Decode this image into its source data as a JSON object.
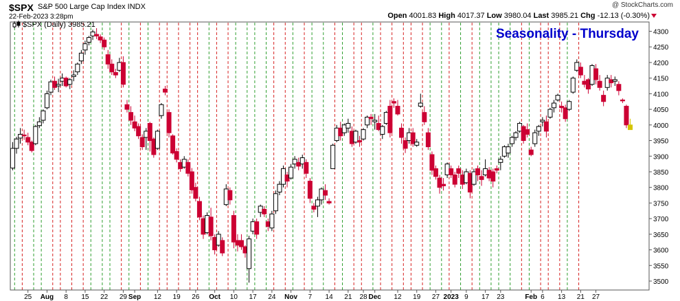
{
  "header": {
    "symbol": "$SPX",
    "description": "S&P 500 Large Cap Index  INDX",
    "datetime": "22-Feb-2023 3:28pm",
    "copyright": "@ StockCharts.com",
    "open_label": "Open",
    "open": "4001.83",
    "high_label": "High",
    "high": "4017.37",
    "low_label": "Low",
    "low": "3980.04",
    "last_label": "Last",
    "last": "3985.21",
    "chg_label": "Chg",
    "chg": "-12.13 (-0.30%)"
  },
  "colors": {
    "up": "#000000",
    "down": "#cc0033",
    "up_grid": "#2e9e2e",
    "down_grid": "#d62020",
    "title": "#0000cc",
    "last_bar": "#d4c400"
  },
  "chart_data": {
    "type": "candlestick",
    "title": "Seasonality - Thursday",
    "legend": "$SPX (Daily) 3985.21",
    "legend_icon": "candlestick-icon",
    "y_ticks": [
      3500,
      3550,
      3600,
      3650,
      3700,
      3750,
      3800,
      3850,
      3900,
      3950,
      4000,
      4050,
      4100,
      4150,
      4200,
      4250,
      4300
    ],
    "ylim": [
      3480,
      4330
    ],
    "x_tick_labels": [
      {
        "i": 4,
        "label": "25",
        "bold": false
      },
      {
        "i": 9,
        "label": "Aug",
        "bold": true
      },
      {
        "i": 14,
        "label": "8",
        "bold": false
      },
      {
        "i": 19,
        "label": "15",
        "bold": false
      },
      {
        "i": 24,
        "label": "22",
        "bold": false
      },
      {
        "i": 29,
        "label": "29",
        "bold": false
      },
      {
        "i": 32,
        "label": "Sep",
        "bold": true
      },
      {
        "i": 38,
        "label": "12",
        "bold": false
      },
      {
        "i": 43,
        "label": "19",
        "bold": false
      },
      {
        "i": 48,
        "label": "26",
        "bold": false
      },
      {
        "i": 53,
        "label": "Oct",
        "bold": true
      },
      {
        "i": 58,
        "label": "10",
        "bold": false
      },
      {
        "i": 63,
        "label": "17",
        "bold": false
      },
      {
        "i": 68,
        "label": "24",
        "bold": false
      },
      {
        "i": 73,
        "label": "Nov",
        "bold": true
      },
      {
        "i": 78,
        "label": "7",
        "bold": false
      },
      {
        "i": 83,
        "label": "14",
        "bold": false
      },
      {
        "i": 88,
        "label": "21",
        "bold": false
      },
      {
        "i": 92,
        "label": "28",
        "bold": false
      },
      {
        "i": 95,
        "label": "Dec",
        "bold": true
      },
      {
        "i": 101,
        "label": "12",
        "bold": false
      },
      {
        "i": 106,
        "label": "19",
        "bold": false
      },
      {
        "i": 111,
        "label": "27",
        "bold": false
      },
      {
        "i": 115,
        "label": "2023",
        "bold": true
      },
      {
        "i": 119,
        "label": "9",
        "bold": false
      },
      {
        "i": 124,
        "label": "17",
        "bold": false
      },
      {
        "i": 128,
        "label": "23",
        "bold": false
      },
      {
        "i": 136,
        "label": "Feb",
        "bold": true
      },
      {
        "i": 139,
        "label": "6",
        "bold": false
      },
      {
        "i": 144,
        "label": "13",
        "bold": false
      },
      {
        "i": 149,
        "label": "21",
        "bold": false
      },
      {
        "i": 153,
        "label": "27",
        "bold": false
      }
    ],
    "week_lines": [
      {
        "i": 1,
        "t": "up"
      },
      {
        "i": 3,
        "t": "down"
      },
      {
        "i": 6,
        "t": "up"
      },
      {
        "i": 8,
        "t": "up"
      },
      {
        "i": 11,
        "t": "down"
      },
      {
        "i": 13,
        "t": "down"
      },
      {
        "i": 16,
        "t": "down"
      },
      {
        "i": 19,
        "t": "down"
      },
      {
        "i": 21,
        "t": "up"
      },
      {
        "i": 24,
        "t": "up"
      },
      {
        "i": 26,
        "t": "up"
      },
      {
        "i": 29,
        "t": "down"
      },
      {
        "i": 31,
        "t": "up"
      },
      {
        "i": 34,
        "t": "down"
      },
      {
        "i": 36,
        "t": "up"
      },
      {
        "i": 39,
        "t": "down"
      },
      {
        "i": 41,
        "t": "down"
      },
      {
        "i": 44,
        "t": "down"
      },
      {
        "i": 47,
        "t": "down"
      },
      {
        "i": 49,
        "t": "down"
      },
      {
        "i": 52,
        "t": "up"
      },
      {
        "i": 54,
        "t": "down"
      },
      {
        "i": 57,
        "t": "down"
      },
      {
        "i": 59,
        "t": "up"
      },
      {
        "i": 62,
        "t": "up"
      },
      {
        "i": 64,
        "t": "up"
      },
      {
        "i": 67,
        "t": "up"
      },
      {
        "i": 69,
        "t": "down"
      },
      {
        "i": 72,
        "t": "down"
      },
      {
        "i": 74,
        "t": "up"
      },
      {
        "i": 77,
        "t": "down"
      },
      {
        "i": 79,
        "t": "up"
      },
      {
        "i": 82,
        "t": "up"
      },
      {
        "i": 85,
        "t": "down"
      },
      {
        "i": 87,
        "t": "up"
      },
      {
        "i": 90,
        "t": "down"
      },
      {
        "i": 92,
        "t": "down"
      },
      {
        "i": 95,
        "t": "up"
      },
      {
        "i": 97,
        "t": "down"
      },
      {
        "i": 100,
        "t": "down"
      },
      {
        "i": 103,
        "t": "down"
      },
      {
        "i": 105,
        "t": "down"
      },
      {
        "i": 108,
        "t": "down"
      },
      {
        "i": 110,
        "t": "up"
      },
      {
        "i": 113,
        "t": "up"
      },
      {
        "i": 115,
        "t": "down"
      },
      {
        "i": 118,
        "t": "up"
      },
      {
        "i": 121,
        "t": "down"
      },
      {
        "i": 123,
        "t": "up"
      },
      {
        "i": 126,
        "t": "up"
      },
      {
        "i": 128,
        "t": "up"
      },
      {
        "i": 131,
        "t": "up"
      },
      {
        "i": 134,
        "t": "down"
      },
      {
        "i": 136,
        "t": "up"
      },
      {
        "i": 139,
        "t": "down"
      },
      {
        "i": 141,
        "t": "down"
      },
      {
        "i": 144,
        "t": "down"
      },
      {
        "i": 146,
        "t": "up"
      },
      {
        "i": 149,
        "t": "down"
      }
    ],
    "ohlc": [
      [
        3862,
        3945,
        3855,
        3925
      ],
      [
        3925,
        3962,
        3908,
        3955
      ],
      [
        3958,
        3990,
        3940,
        3970
      ],
      [
        3968,
        3985,
        3952,
        3965
      ],
      [
        3960,
        3975,
        3935,
        3945
      ],
      [
        3945,
        3950,
        3912,
        3918
      ],
      [
        3940,
        4000,
        3935,
        3995
      ],
      [
        3998,
        4025,
        3990,
        4010
      ],
      [
        4015,
        4050,
        4005,
        4045
      ],
      [
        4055,
        4110,
        4050,
        4100
      ],
      [
        4105,
        4145,
        4095,
        4138
      ],
      [
        4140,
        4155,
        4112,
        4120
      ],
      [
        4125,
        4148,
        4105,
        4130
      ],
      [
        4140,
        4165,
        4125,
        4150
      ],
      [
        4150,
        4155,
        4120,
        4125
      ],
      [
        4130,
        4150,
        4115,
        4145
      ],
      [
        4155,
        4175,
        4140,
        4160
      ],
      [
        4170,
        4200,
        4160,
        4195
      ],
      [
        4205,
        4240,
        4195,
        4230
      ],
      [
        4240,
        4270,
        4225,
        4260
      ],
      [
        4265,
        4285,
        4255,
        4280
      ],
      [
        4285,
        4305,
        4272,
        4298
      ],
      [
        4290,
        4310,
        4275,
        4285
      ],
      [
        4282,
        4290,
        4262,
        4272
      ],
      [
        4272,
        4280,
        4240,
        4250
      ],
      [
        4225,
        4240,
        4180,
        4195
      ],
      [
        4195,
        4210,
        4160,
        4170
      ],
      [
        4168,
        4180,
        4150,
        4160
      ],
      [
        4175,
        4215,
        4170,
        4200
      ],
      [
        4200,
        4220,
        4120,
        4130
      ],
      [
        4065,
        4080,
        4040,
        4050
      ],
      [
        4040,
        4060,
        4000,
        4015
      ],
      [
        4010,
        4030,
        3980,
        3990
      ],
      [
        3995,
        4005,
        3955,
        3965
      ],
      [
        3960,
        3970,
        3920,
        3930
      ],
      [
        3960,
        3990,
        3920,
        3980
      ],
      [
        4005,
        4010,
        3915,
        3950
      ],
      [
        3955,
        3960,
        3895,
        3905
      ],
      [
        3925,
        3985,
        3920,
        3980
      ],
      [
        4030,
        4070,
        4020,
        4065
      ],
      [
        4115,
        4125,
        4095,
        4105
      ],
      [
        4040,
        4050,
        3960,
        3975
      ],
      [
        3965,
        3970,
        3905,
        3910
      ],
      [
        3915,
        3925,
        3880,
        3890
      ],
      [
        3880,
        3890,
        3850,
        3860
      ],
      [
        3865,
        3900,
        3860,
        3890
      ],
      [
        3880,
        3890,
        3835,
        3845
      ],
      [
        3850,
        3862,
        3780,
        3792
      ],
      [
        3800,
        3815,
        3755,
        3765
      ],
      [
        3755,
        3770,
        3695,
        3705
      ],
      [
        3700,
        3710,
        3635,
        3650
      ],
      [
        3655,
        3720,
        3650,
        3710
      ],
      [
        3705,
        3735,
        3630,
        3645
      ],
      [
        3640,
        3650,
        3585,
        3600
      ],
      [
        3615,
        3660,
        3610,
        3650
      ],
      [
        3630,
        3640,
        3580,
        3590
      ],
      [
        3745,
        3810,
        3740,
        3795
      ],
      [
        3790,
        3800,
        3745,
        3760
      ],
      [
        3710,
        3725,
        3605,
        3625
      ],
      [
        3630,
        3650,
        3595,
        3615
      ],
      [
        3630,
        3650,
        3600,
        3610
      ],
      [
        3610,
        3615,
        3575,
        3590
      ],
      [
        3540,
        3645,
        3495,
        3635
      ],
      [
        3660,
        3700,
        3650,
        3690
      ],
      [
        3690,
        3700,
        3635,
        3650
      ],
      [
        3720,
        3745,
        3705,
        3740
      ],
      [
        3730,
        3740,
        3705,
        3715
      ],
      [
        3690,
        3700,
        3660,
        3675
      ],
      [
        3670,
        3725,
        3660,
        3715
      ],
      [
        3725,
        3790,
        3715,
        3780
      ],
      [
        3785,
        3820,
        3775,
        3810
      ],
      [
        3810,
        3870,
        3800,
        3860
      ],
      [
        3840,
        3850,
        3800,
        3820
      ],
      [
        3830,
        3875,
        3825,
        3865
      ],
      [
        3875,
        3900,
        3860,
        3890
      ],
      [
        3880,
        3895,
        3855,
        3868
      ],
      [
        3875,
        3905,
        3860,
        3895
      ],
      [
        3880,
        3890,
        3830,
        3845
      ],
      [
        3820,
        3830,
        3750,
        3765
      ],
      [
        3740,
        3750,
        3720,
        3730
      ],
      [
        3740,
        3770,
        3705,
        3760
      ],
      [
        3760,
        3800,
        3745,
        3795
      ],
      [
        3790,
        3810,
        3760,
        3775
      ],
      [
        3755,
        3765,
        3745,
        3750
      ],
      [
        3860,
        3940,
        3860,
        3935
      ],
      [
        3950,
        4000,
        3945,
        3990
      ],
      [
        3990,
        4010,
        3950,
        3965
      ],
      [
        3975,
        4005,
        3965,
        4000
      ],
      [
        3990,
        4020,
        3975,
        4005
      ],
      [
        3980,
        3995,
        3930,
        3940
      ],
      [
        3945,
        3985,
        3940,
        3980
      ],
      [
        3950,
        3965,
        3930,
        3945
      ],
      [
        3955,
        3990,
        3950,
        3985
      ],
      [
        4000,
        4030,
        3990,
        4025
      ],
      [
        4025,
        4035,
        4000,
        4020
      ],
      [
        4010,
        4035,
        3985,
        4015
      ],
      [
        4005,
        4030,
        3980,
        3985
      ],
      [
        3970,
        4000,
        3955,
        3995
      ],
      [
        4005,
        4045,
        4000,
        4040
      ],
      [
        4060,
        4080,
        3960,
        3975
      ],
      [
        4075,
        4085,
        4055,
        4070
      ],
      [
        4060,
        4080,
        4030,
        4035
      ],
      [
        3990,
        4005,
        3940,
        3960
      ],
      [
        3950,
        3960,
        3910,
        3925
      ],
      [
        3950,
        3990,
        3940,
        3975
      ],
      [
        3975,
        3990,
        3930,
        3940
      ],
      [
        3935,
        3955,
        3930,
        3945
      ],
      [
        4060,
        4100,
        4055,
        4070
      ],
      [
        4040,
        4060,
        4000,
        4010
      ],
      [
        3975,
        3990,
        3920,
        3930
      ],
      [
        3905,
        3915,
        3840,
        3855
      ],
      [
        3860,
        3870,
        3825,
        3835
      ],
      [
        3830,
        3840,
        3780,
        3800
      ],
      [
        3810,
        3830,
        3790,
        3805
      ],
      [
        3840,
        3880,
        3830,
        3875
      ],
      [
        3860,
        3870,
        3830,
        3840
      ],
      [
        3840,
        3850,
        3800,
        3810
      ],
      [
        3860,
        3870,
        3830,
        3845
      ],
      [
        3840,
        3855,
        3795,
        3810
      ],
      [
        3815,
        3860,
        3810,
        3850
      ],
      [
        3845,
        3855,
        3765,
        3785
      ],
      [
        3810,
        3860,
        3805,
        3850
      ],
      [
        3860,
        3870,
        3820,
        3840
      ],
      [
        3835,
        3855,
        3805,
        3825
      ],
      [
        3840,
        3890,
        3835,
        3860
      ],
      [
        3855,
        3865,
        3820,
        3830
      ],
      [
        3850,
        3860,
        3800,
        3820
      ],
      [
        3860,
        3870,
        3845,
        3855
      ],
      [
        3880,
        3900,
        3855,
        3890
      ],
      [
        3900,
        3935,
        3895,
        3930
      ],
      [
        3910,
        3940,
        3895,
        3930
      ],
      [
        3940,
        3965,
        3930,
        3960
      ],
      [
        3960,
        3980,
        3950,
        3975
      ],
      [
        3980,
        4010,
        3975,
        4005
      ],
      [
        3995,
        4000,
        3940,
        3950
      ],
      [
        3985,
        4005,
        3960,
        3970
      ],
      [
        3920,
        3930,
        3900,
        3905
      ],
      [
        3940,
        3985,
        3930,
        3975
      ],
      [
        3980,
        4000,
        3965,
        3995
      ],
      [
        4010,
        4025,
        3995,
        4015
      ],
      [
        4010,
        4030,
        3960,
        3980
      ],
      [
        4025,
        4055,
        4020,
        4050
      ],
      [
        4055,
        4080,
        4040,
        4070
      ],
      [
        4080,
        4100,
        4075,
        4095
      ],
      [
        4060,
        4075,
        4040,
        4055
      ],
      [
        4055,
        4065,
        4010,
        4020
      ],
      [
        4050,
        4080,
        4045,
        4075
      ],
      [
        4105,
        4155,
        4100,
        4150
      ],
      [
        4175,
        4210,
        4170,
        4200
      ],
      [
        4185,
        4200,
        4150,
        4160
      ],
      [
        4140,
        4160,
        4120,
        4130
      ],
      [
        4145,
        4150,
        4100,
        4115
      ],
      [
        4130,
        4195,
        4125,
        4190
      ],
      [
        4180,
        4195,
        4130,
        4145
      ],
      [
        4140,
        4160,
        4110,
        4120
      ],
      [
        4095,
        4110,
        4060,
        4075
      ],
      [
        4120,
        4160,
        4110,
        4150
      ],
      [
        4145,
        4160,
        4120,
        4135
      ],
      [
        4140,
        4155,
        4125,
        4145
      ],
      [
        4130,
        4140,
        4095,
        4110
      ],
      [
        4080,
        4085,
        4070,
        4077
      ],
      [
        4060,
        4065,
        3990,
        4000
      ],
      [
        4000,
        4020,
        3985,
        3985
      ]
    ]
  }
}
